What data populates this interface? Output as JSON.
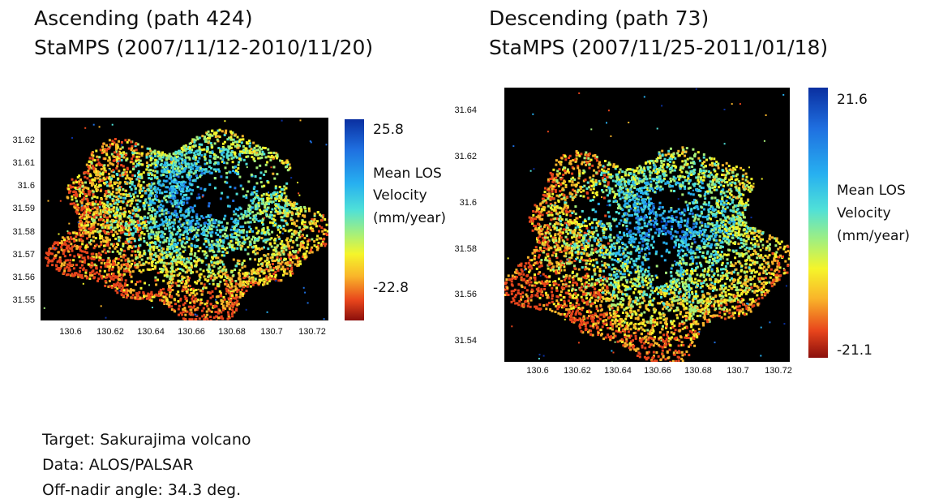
{
  "panels": [
    {
      "title_line1": "Ascending (path 424)",
      "title_line2": "StaMPS (2007/11/12-2010/11/20)",
      "y_ticks": [
        "31.62",
        "31.61",
        "31.6",
        "31.59",
        "31.58",
        "31.57",
        "31.56",
        "31.55"
      ],
      "x_ticks": [
        "130.6",
        "130.62",
        "130.64",
        "130.66",
        "130.68",
        "130.7",
        "130.72"
      ],
      "colorbar_max": "25.8",
      "colorbar_min": "-22.8",
      "colorbar_label": [
        "Mean LOS",
        "Velocity",
        "(mm/year)"
      ]
    },
    {
      "title_line1": "Descending (path 73)",
      "title_line2": "StaMPS (2007/11/25-2011/01/18)",
      "y_ticks": [
        "31.64",
        "31.62",
        "31.6",
        "31.58",
        "31.56",
        "31.54"
      ],
      "x_ticks": [
        "130.6",
        "130.62",
        "130.64",
        "130.66",
        "130.68",
        "130.7",
        "130.72"
      ],
      "colorbar_max": "21.6",
      "colorbar_min": "-21.1",
      "colorbar_label": [
        "Mean LOS",
        "Velocity",
        "(mm/year)"
      ]
    }
  ],
  "footer": {
    "line1": "Target: Sakurajima volcano",
    "line2": "Data: ALOS/PALSAR",
    "line3": "Off-nadir angle: 34.3 deg."
  },
  "chart_data": [
    {
      "type": "heatmap",
      "title": "Ascending (path 424) StaMPS (2007/11/12-2010/11/20)",
      "x_ticks": [
        130.6,
        130.62,
        130.64,
        130.66,
        130.68,
        130.7,
        130.72
      ],
      "y_ticks": [
        31.62,
        31.61,
        31.6,
        31.59,
        31.58,
        31.57,
        31.56,
        31.55
      ],
      "colorbar": {
        "label": "Mean LOS Velocity (mm/year)",
        "max": 25.8,
        "min": -22.8
      },
      "background": "#000000"
    },
    {
      "type": "heatmap",
      "title": "Descending (path 73) StaMPS (2007/11/25-2011/01/18)",
      "x_ticks": [
        130.6,
        130.62,
        130.64,
        130.66,
        130.68,
        130.7,
        130.72
      ],
      "y_ticks": [
        31.64,
        31.62,
        31.6,
        31.58,
        31.56,
        31.54
      ],
      "colorbar": {
        "label": "Mean LOS Velocity (mm/year)",
        "max": 21.6,
        "min": -21.1
      },
      "background": "#000000"
    }
  ]
}
